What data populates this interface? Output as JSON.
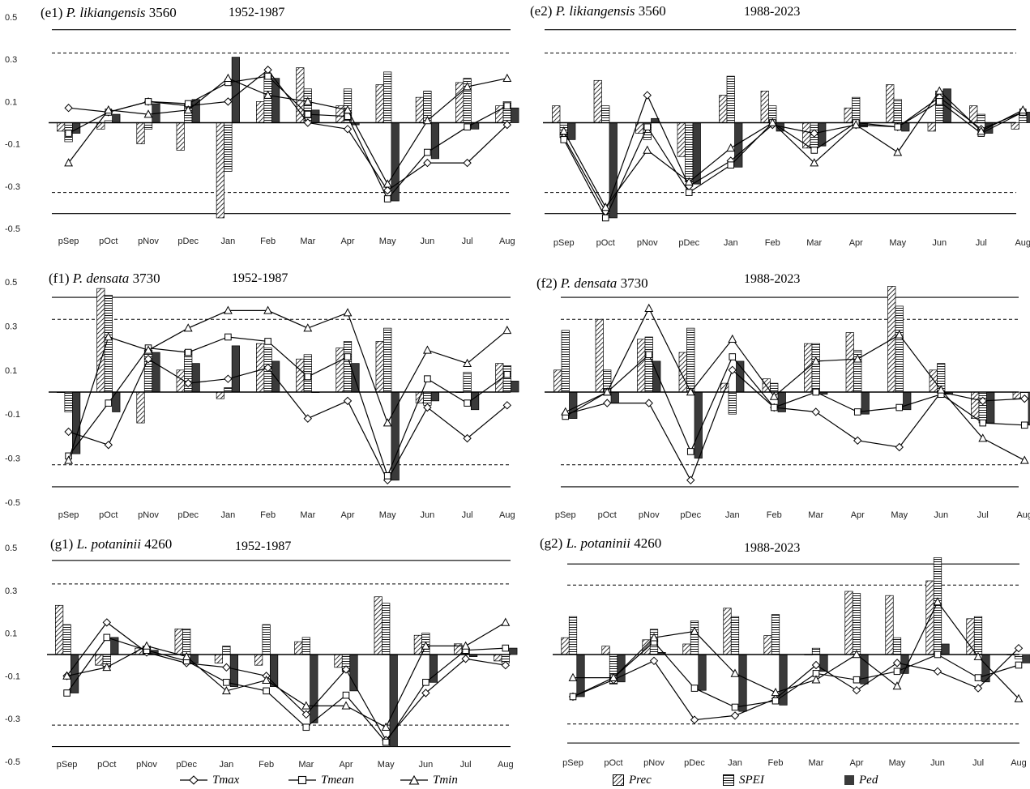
{
  "legend": {
    "line_items": [
      {
        "label": "Tmax",
        "marker": "diamond"
      },
      {
        "label": "Tmean",
        "marker": "square"
      },
      {
        "label": "Tmin",
        "marker": "triangle"
      }
    ],
    "bar_items": [
      {
        "label": "Prec",
        "fill": "hatch-diagonal"
      },
      {
        "label": "SPEI",
        "fill": "hatch-horizontal"
      },
      {
        "label": "Ped",
        "fill": "#3a3a3a"
      }
    ]
  },
  "panels": [
    {
      "id": "e1",
      "label": "(e1)",
      "species": "P. likiangensis",
      "elevation": "3560",
      "period": "1952-1987"
    },
    {
      "id": "e2",
      "label": "(e2)",
      "species": "P. likiangensis",
      "elevation": "3560",
      "period": "1988-2023"
    },
    {
      "id": "f1",
      "label": "(f1)",
      "species": "P. densata",
      "elevation": "3730",
      "period": "1952-1987"
    },
    {
      "id": "f2",
      "label": "(f2)",
      "species": "P. densata",
      "elevation": "3730",
      "period": "1988-2023"
    },
    {
      "id": "g1",
      "label": "(g1)",
      "species": "L. potaninii",
      "elevation": "4260",
      "period": "1952-1987"
    },
    {
      "id": "g2",
      "label": "(g2)",
      "species": "L. potaninii",
      "elevation": "4260",
      "period": "1988-2023"
    }
  ],
  "chart_data": [
    {
      "type": "bar",
      "panel": "e1",
      "categories": [
        "pSep",
        "pOct",
        "pNov",
        "pDec",
        "Jan",
        "Feb",
        "Mar",
        "Apr",
        "May",
        "Jun",
        "Jul",
        "Aug"
      ],
      "ylim": [
        -0.5,
        0.5
      ],
      "yticks": [
        "0.5",
        "0.3",
        "0.1",
        "-0.1",
        "-0.3",
        "-0.5"
      ],
      "significance_lines": {
        "dashed": [
          0.33,
          -0.33
        ],
        "solid": [
          0.44,
          -0.43
        ]
      },
      "bar_series": [
        {
          "name": "Prec",
          "values": [
            -0.04,
            -0.03,
            -0.1,
            -0.13,
            -0.45,
            0.1,
            0.26,
            0.08,
            0.18,
            0.12,
            0.19,
            0.08
          ]
        },
        {
          "name": "SPEI",
          "values": [
            -0.09,
            0.01,
            -0.03,
            0.09,
            -0.23,
            0.23,
            0.16,
            0.16,
            0.24,
            0.15,
            0.21,
            0.1
          ]
        },
        {
          "name": "Ped",
          "values": [
            -0.05,
            0.04,
            0.09,
            0.11,
            0.31,
            0.21,
            0.06,
            -0.01,
            -0.37,
            -0.17,
            -0.03,
            0.07
          ]
        }
      ],
      "line_series": [
        {
          "name": "Tmax",
          "values": [
            0.07,
            0.05,
            0.1,
            0.08,
            0.1,
            0.25,
            0.0,
            -0.03,
            -0.32,
            -0.19,
            -0.19,
            -0.01
          ]
        },
        {
          "name": "Tmean",
          "values": [
            -0.05,
            0.05,
            0.1,
            0.09,
            0.19,
            0.22,
            0.04,
            0.03,
            -0.36,
            -0.14,
            -0.02,
            0.08
          ]
        },
        {
          "name": "Tmin",
          "values": [
            -0.19,
            0.06,
            0.04,
            0.06,
            0.21,
            0.13,
            0.1,
            0.06,
            -0.29,
            0.01,
            0.17,
            0.21
          ]
        }
      ]
    },
    {
      "type": "bar",
      "panel": "e2",
      "categories": [
        "pSep",
        "pOct",
        "pNov",
        "pDec",
        "Jan",
        "Feb",
        "Mar",
        "Apr",
        "May",
        "Jun",
        "Jul",
        "Aug"
      ],
      "ylim": [
        -0.5,
        0.5
      ],
      "yticks": [],
      "significance_lines": {
        "dashed": [
          0.33,
          -0.33
        ],
        "solid": [
          0.44,
          -0.43
        ]
      },
      "bar_series": [
        {
          "name": "Prec",
          "values": [
            0.08,
            0.2,
            -0.05,
            -0.16,
            0.13,
            0.15,
            -0.12,
            0.07,
            0.18,
            -0.04,
            0.08,
            -0.03
          ]
        },
        {
          "name": "SPEI",
          "values": [
            -0.07,
            0.08,
            -0.08,
            -0.28,
            0.22,
            0.08,
            -0.12,
            0.12,
            0.11,
            0.15,
            0.04,
            0.05
          ]
        },
        {
          "name": "Ped",
          "values": [
            -0.08,
            -0.45,
            0.02,
            -0.29,
            -0.21,
            -0.04,
            -0.11,
            -0.02,
            -0.04,
            0.16,
            -0.05,
            0.05
          ]
        }
      ],
      "line_series": [
        {
          "name": "Tmax",
          "values": [
            -0.07,
            -0.42,
            0.13,
            -0.3,
            -0.18,
            -0.01,
            -0.05,
            -0.01,
            -0.02,
            0.12,
            -0.03,
            0.05
          ]
        },
        {
          "name": "Tmean",
          "values": [
            -0.08,
            -0.45,
            -0.02,
            -0.33,
            -0.2,
            0.0,
            -0.13,
            0.0,
            -0.02,
            0.1,
            -0.05,
            0.05
          ]
        },
        {
          "name": "Tmin",
          "values": [
            -0.04,
            -0.4,
            -0.13,
            -0.28,
            -0.12,
            0.0,
            -0.19,
            -0.01,
            -0.14,
            0.15,
            -0.04,
            0.06
          ]
        }
      ]
    },
    {
      "type": "bar",
      "panel": "f1",
      "categories": [
        "pSep",
        "pOct",
        "pNov",
        "pDec",
        "Jan",
        "Feb",
        "Mar",
        "Apr",
        "May",
        "Jun",
        "Jul",
        "Aug"
      ],
      "ylim": [
        -0.5,
        0.5
      ],
      "yticks": [
        "0.5",
        "0.3",
        "0.1",
        "-0.1",
        "-0.3",
        "-0.5"
      ],
      "significance_lines": {
        "dashed": [
          0.33,
          -0.33
        ],
        "solid": [
          0.43,
          -0.43
        ]
      },
      "bar_series": [
        {
          "name": "Prec",
          "values": [
            0.0,
            0.47,
            -0.14,
            0.1,
            -0.03,
            0.22,
            0.15,
            0.2,
            0.23,
            -0.05,
            0.0,
            0.13
          ]
        },
        {
          "name": "SPEI",
          "values": [
            -0.09,
            0.44,
            0.19,
            0.19,
            0.02,
            0.2,
            0.17,
            0.23,
            0.29,
            -0.06,
            0.09,
            0.12
          ]
        },
        {
          "name": "Ped",
          "values": [
            -0.28,
            -0.09,
            0.18,
            0.13,
            0.21,
            0.14,
            0.0,
            0.13,
            -0.4,
            -0.04,
            -0.08,
            0.05
          ]
        }
      ],
      "line_series": [
        {
          "name": "Tmax",
          "values": [
            -0.18,
            -0.24,
            0.15,
            0.04,
            0.06,
            0.11,
            -0.12,
            -0.04,
            -0.4,
            -0.07,
            -0.21,
            -0.06
          ]
        },
        {
          "name": "Tmean",
          "values": [
            -0.29,
            -0.05,
            0.2,
            0.18,
            0.25,
            0.23,
            0.07,
            0.16,
            -0.38,
            0.06,
            -0.05,
            0.08
          ]
        },
        {
          "name": "Tmin",
          "values": [
            -0.31,
            0.25,
            0.19,
            0.29,
            0.37,
            0.37,
            0.29,
            0.36,
            -0.14,
            0.19,
            0.13,
            0.28
          ]
        }
      ]
    },
    {
      "type": "bar",
      "panel": "f2",
      "categories": [
        "pSep",
        "pOct",
        "pNov",
        "pDec",
        "Jan",
        "Feb",
        "Mar",
        "Apr",
        "May",
        "Jun",
        "Jul",
        "Aug"
      ],
      "ylim": [
        -0.5,
        0.5
      ],
      "yticks": [],
      "significance_lines": {
        "dashed": [
          0.33,
          -0.33
        ],
        "solid": [
          0.43,
          -0.43
        ]
      },
      "bar_series": [
        {
          "name": "Prec",
          "values": [
            0.1,
            0.33,
            0.24,
            0.18,
            0.04,
            0.06,
            0.22,
            0.27,
            0.48,
            0.1,
            -0.12,
            -0.03
          ]
        },
        {
          "name": "SPEI",
          "values": [
            0.28,
            0.1,
            0.25,
            0.29,
            -0.1,
            0.04,
            0.22,
            0.19,
            0.39,
            0.13,
            -0.14,
            0.0
          ]
        },
        {
          "name": "Ped",
          "values": [
            -0.12,
            -0.05,
            0.14,
            -0.3,
            0.14,
            -0.09,
            -0.01,
            -0.1,
            -0.08,
            -0.01,
            -0.14,
            -0.15
          ]
        }
      ],
      "line_series": [
        {
          "name": "Tmax",
          "values": [
            -0.1,
            -0.05,
            -0.05,
            -0.4,
            0.1,
            -0.07,
            -0.09,
            -0.22,
            -0.25,
            0.0,
            -0.04,
            -0.03
          ]
        },
        {
          "name": "Tmean",
          "values": [
            -0.11,
            0.0,
            0.17,
            -0.27,
            0.16,
            -0.07,
            0.0,
            -0.09,
            -0.07,
            -0.01,
            -0.14,
            -0.15
          ]
        },
        {
          "name": "Tmin",
          "values": [
            -0.09,
            0.0,
            0.38,
            0.0,
            0.24,
            -0.02,
            0.14,
            0.15,
            0.26,
            0.01,
            -0.21,
            -0.31
          ]
        }
      ]
    },
    {
      "type": "bar",
      "panel": "g1",
      "categories": [
        "pSep",
        "pOct",
        "pNov",
        "pDec",
        "Jan",
        "Feb",
        "Mar",
        "Apr",
        "May",
        "Jun",
        "Jul",
        "Aug"
      ],
      "ylim": [
        -0.5,
        0.5
      ],
      "yticks": [
        "0.5",
        "0.3",
        "0.1",
        "-0.1",
        "-0.3",
        "-0.5"
      ],
      "significance_lines": {
        "dashed": [
          0.33,
          -0.33
        ],
        "solid": [
          0.44,
          -0.43
        ]
      },
      "bar_series": [
        {
          "name": "Prec",
          "values": [
            0.23,
            -0.05,
            0.03,
            0.12,
            -0.04,
            -0.05,
            0.06,
            -0.06,
            0.27,
            0.09,
            0.05,
            -0.03
          ]
        },
        {
          "name": "SPEI",
          "values": [
            0.14,
            -0.06,
            0.04,
            0.12,
            0.04,
            0.14,
            0.08,
            -0.08,
            0.24,
            0.1,
            0.03,
            -0.04
          ]
        },
        {
          "name": "Ped",
          "values": [
            -0.18,
            0.08,
            0.02,
            -0.04,
            -0.15,
            -0.15,
            -0.32,
            -0.17,
            -0.43,
            -0.13,
            -0.01,
            0.03
          ]
        }
      ],
      "line_series": [
        {
          "name": "Tmax",
          "values": [
            -0.1,
            0.15,
            0.01,
            -0.04,
            -0.06,
            -0.1,
            -0.28,
            -0.07,
            -0.4,
            -0.18,
            -0.02,
            -0.05
          ]
        },
        {
          "name": "Tmean",
          "values": [
            -0.18,
            0.08,
            0.02,
            -0.03,
            -0.13,
            -0.17,
            -0.34,
            -0.19,
            -0.41,
            -0.13,
            0.02,
            0.03
          ]
        },
        {
          "name": "Tmin",
          "values": [
            -0.1,
            -0.06,
            0.04,
            -0.01,
            -0.17,
            -0.12,
            -0.24,
            -0.24,
            -0.34,
            0.04,
            0.04,
            0.15
          ]
        }
      ]
    },
    {
      "type": "bar",
      "panel": "g2",
      "categories": [
        "pSep",
        "pOct",
        "pNov",
        "pDec",
        "Jan",
        "Feb",
        "Mar",
        "Apr",
        "May",
        "Jun",
        "Jul",
        "Aug"
      ],
      "ylim": [
        -0.5,
        0.5
      ],
      "yticks": [],
      "significance_lines": {
        "dashed": [
          0.33,
          -0.33
        ],
        "solid": [
          0.43,
          -0.42
        ]
      },
      "bar_series": [
        {
          "name": "Prec",
          "values": [
            0.08,
            0.04,
            0.07,
            0.05,
            0.22,
            0.09,
            0.0,
            0.3,
            0.28,
            0.35,
            0.17,
            0.0
          ]
        },
        {
          "name": "SPEI",
          "values": [
            0.18,
            -0.14,
            0.12,
            0.16,
            0.18,
            0.19,
            0.03,
            0.29,
            0.08,
            0.46,
            0.18,
            -0.02
          ]
        },
        {
          "name": "Ped",
          "values": [
            -0.2,
            -0.13,
            0.01,
            -0.17,
            -0.27,
            -0.24,
            -0.08,
            -0.14,
            -0.09,
            0.05,
            -0.13,
            -0.04
          ]
        }
      ],
      "line_series": [
        {
          "name": "Tmax",
          "values": [
            -0.2,
            -0.12,
            -0.03,
            -0.31,
            -0.29,
            -0.21,
            -0.05,
            -0.17,
            -0.04,
            -0.08,
            -0.16,
            0.03
          ]
        },
        {
          "name": "Tmean",
          "values": [
            -0.2,
            -0.11,
            0.06,
            -0.16,
            -0.25,
            -0.22,
            -0.09,
            -0.12,
            -0.08,
            0.0,
            -0.11,
            -0.05
          ]
        },
        {
          "name": "Tmin",
          "values": [
            -0.11,
            -0.11,
            0.08,
            0.11,
            -0.09,
            -0.18,
            -0.12,
            0.0,
            -0.15,
            0.25,
            -0.01,
            -0.21
          ]
        }
      ]
    }
  ]
}
